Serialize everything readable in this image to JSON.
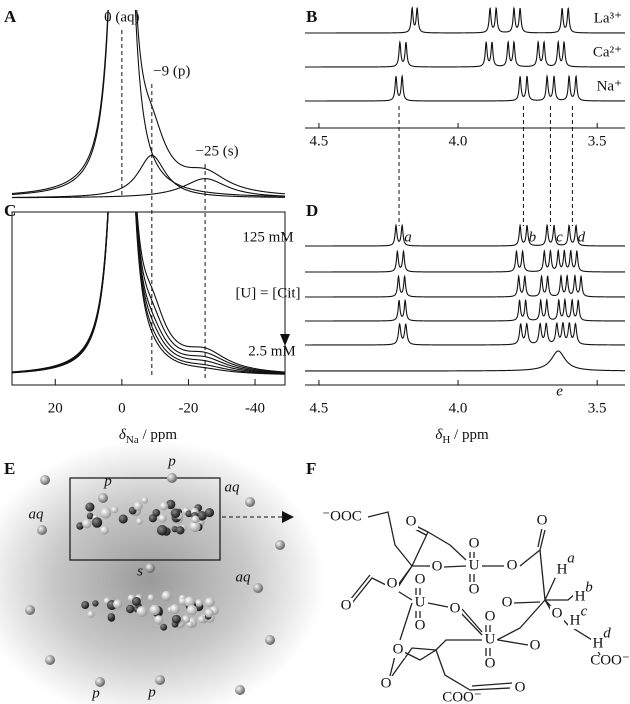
{
  "panel_labels": [
    "A",
    "B",
    "C",
    "D",
    "E",
    "F"
  ],
  "chart_data": [
    {
      "type": "line",
      "xlim": [
        33,
        -49
      ],
      "ylim": [
        0,
        0.95
      ],
      "annotations": [
        "0 (aq)",
        "−9 (p)",
        "−25 (s)"
      ],
      "components": [
        {
          "center": 0,
          "height": 5,
          "width": 2
        },
        {
          "center": -9,
          "height": 0.22,
          "width": 5
        },
        {
          "center": -25,
          "height": 0.1,
          "width": 8
        }
      ]
    },
    {
      "type": "line",
      "xlim": [
        33,
        -49
      ],
      "ylim": [
        0,
        0.95
      ],
      "xticks": [
        20,
        0,
        -20,
        -40
      ],
      "xlabel": {
        "symbol": "δ",
        "subscript": "Na",
        "unit": " / ppm"
      },
      "series": [
        {
          "components": [
            {
              "center": 0,
              "height": 5,
              "width": 2
            },
            {
              "center": -9,
              "height": 0.26,
              "width": 5
            },
            {
              "center": -25,
              "height": 0.11,
              "width": 8
            }
          ]
        },
        {
          "components": [
            {
              "center": 0,
              "height": 5,
              "width": 2
            },
            {
              "center": -9,
              "height": 0.19,
              "width": 5
            },
            {
              "center": -25,
              "height": 0.09,
              "width": 8
            }
          ]
        },
        {
          "components": [
            {
              "center": 0,
              "height": 5,
              "width": 2
            },
            {
              "center": -9,
              "height": 0.13,
              "width": 5
            },
            {
              "center": -25,
              "height": 0.07,
              "width": 8
            }
          ]
        },
        {
          "components": [
            {
              "center": 0,
              "height": 5,
              "width": 2
            },
            {
              "center": -9,
              "height": 0.09,
              "width": 5
            },
            {
              "center": -25,
              "height": 0.05,
              "width": 8
            }
          ]
        },
        {
          "components": [
            {
              "center": 0,
              "height": 5,
              "width": 2
            },
            {
              "center": -9,
              "height": 0.05,
              "width": 5
            },
            {
              "center": -25,
              "height": 0.03,
              "width": 8
            }
          ]
        },
        {
          "components": [
            {
              "center": 0,
              "height": 5,
              "width": 2
            },
            {
              "center": -9,
              "height": 0.02,
              "width": 5
            },
            {
              "center": -25,
              "height": 0.015,
              "width": 8
            }
          ]
        }
      ]
    },
    {
      "type": "spectrum",
      "xlim": [
        4.55,
        3.4
      ],
      "ylim": [
        0,
        1
      ],
      "xticks": [
        4.5,
        {
          "value": 4,
          "label": "4.0"
        },
        3.5
      ],
      "series": [
        {
          "name": "La³⁺",
          "width": 0.004,
          "peaks": [
            4.165,
            4.147,
            3.885,
            3.863,
            3.799,
            3.777,
            3.626,
            3.604
          ]
        },
        {
          "name": "Ca²⁺",
          "width": 0.004,
          "peaks": [
            4.209,
            4.187,
            3.899,
            3.878,
            3.82,
            3.799,
            3.712,
            3.691,
            3.64,
            3.619
          ]
        },
        {
          "name": "Na⁺",
          "width": 0.004,
          "peaks": [
            4.223,
            4.201,
            3.777,
            3.752,
            3.68,
            3.655,
            3.601,
            3.576
          ]
        }
      ]
    },
    {
      "type": "spectrum",
      "xlim": [
        4.55,
        3.4
      ],
      "ylim": [
        0,
        1
      ],
      "xticks": [
        4.5,
        {
          "value": 4,
          "label": "4.0"
        },
        3.5
      ],
      "xlabel": {
        "symbol": "δ",
        "subscript": "H",
        "unit": " / ppm"
      },
      "concentration_labels": [
        "125 mM",
        "[U] = [Cit]",
        "2.5 mM"
      ],
      "peak_labels": [
        {
          "label": "a",
          "value": 4.212,
          "dashed": true
        },
        {
          "label": "b",
          "value": 3.765,
          "dashed": true
        },
        {
          "label": "c",
          "value": 3.668,
          "dashed": true
        },
        {
          "label": "d",
          "value": 3.589,
          "dashed": true
        },
        {
          "label": "e",
          "value": 3.635,
          "dashed": false
        }
      ],
      "series": [
        {
          "width": 0.004,
          "peaks": [
            4.223,
            4.201,
            3.777,
            3.752,
            3.68,
            3.655,
            3.601,
            3.576
          ]
        },
        {
          "width": 0.004,
          "peaks": [
            4.218,
            4.196,
            3.79,
            3.768,
            3.69,
            3.668,
            3.64,
            3.618,
            3.595,
            3.573
          ]
        },
        {
          "width": 0.004,
          "peaks": [
            4.214,
            4.192,
            3.782,
            3.76,
            3.7,
            3.678,
            3.63,
            3.608,
            3.58,
            3.558
          ]
        },
        {
          "width": 0.004,
          "peaks": [
            4.212,
            4.19,
            3.779,
            3.757,
            3.703,
            3.681,
            3.638,
            3.616,
            3.59,
            3.568
          ]
        },
        {
          "width": 0.005,
          "peaks": [
            4.21,
            4.188,
            3.775,
            3.753,
            3.705,
            3.683,
            3.645,
            3.623,
            3.6,
            3.578
          ]
        },
        {
          "width": 0.03,
          "peaks": [
            3.64
          ]
        }
      ]
    }
  ],
  "panel_E": {
    "labels": [
      "p",
      "p",
      "aq",
      "aq",
      "s",
      "aq",
      "p",
      "p"
    ]
  },
  "panel_F": {
    "atoms": [
      "⁻OOC",
      "O",
      "O",
      "O",
      "O",
      "U",
      "O",
      "O",
      "O",
      "O",
      "U",
      "O",
      "O",
      "O",
      "O",
      "U",
      "O",
      "O",
      "O",
      "O",
      "O",
      "O",
      "H",
      "a",
      "H",
      "b",
      "H",
      "c",
      "H",
      "d",
      "COO⁻",
      "COO⁻",
      "O"
    ]
  }
}
